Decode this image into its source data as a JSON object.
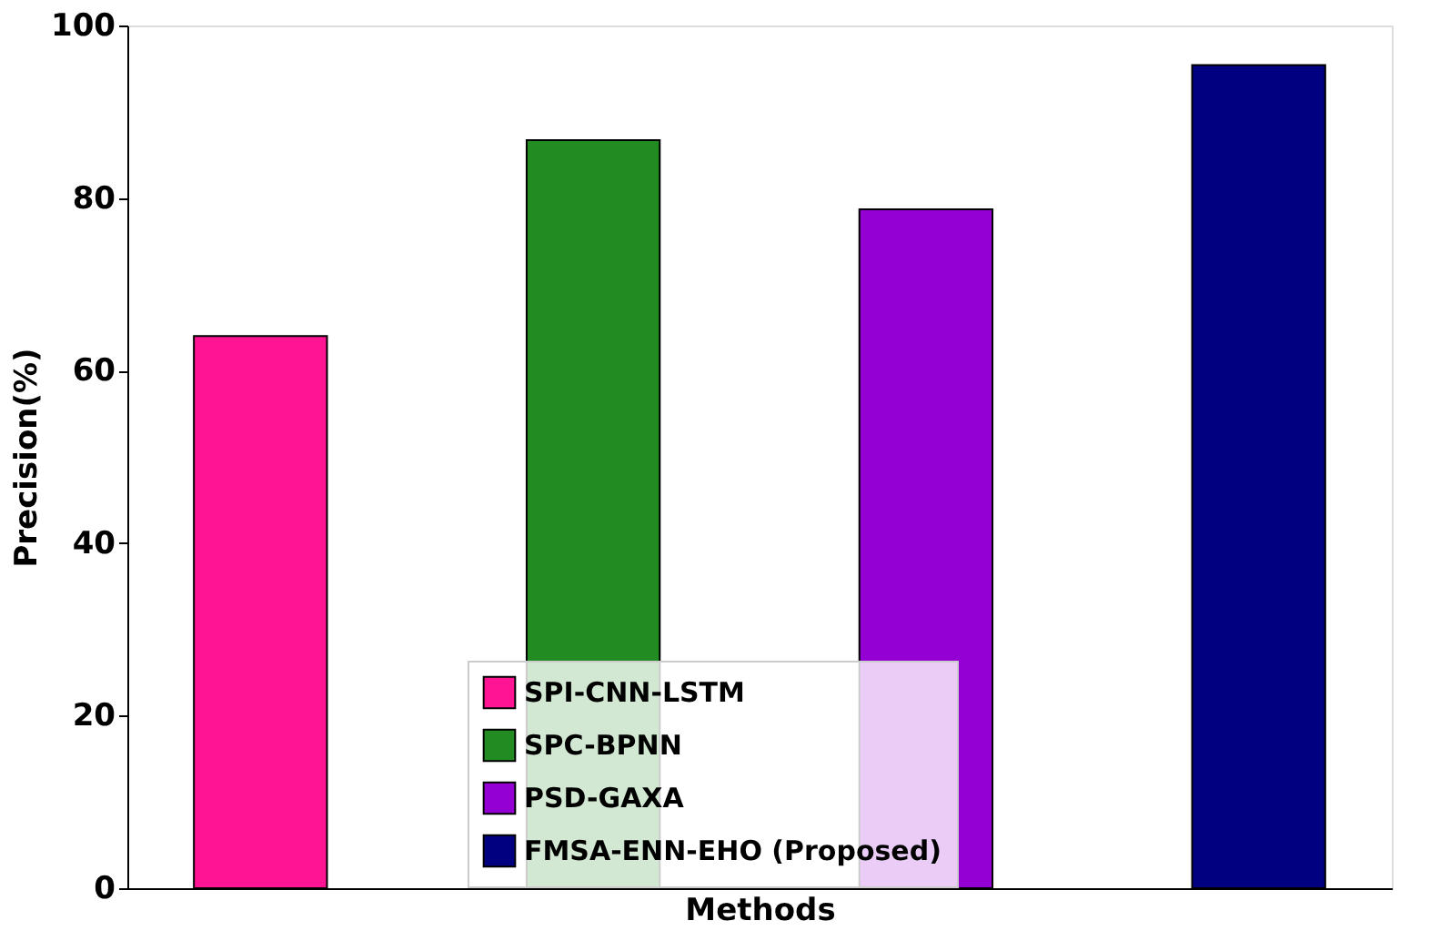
{
  "chart_data": {
    "type": "bar",
    "xlabel": "Methods",
    "ylabel": "Precision(%)",
    "categories": [
      null,
      null,
      null,
      null
    ],
    "series": [
      {
        "name": "SPI-CNN-LSTM",
        "color": "#ff1493",
        "values": [
          64,
          null,
          null,
          null
        ]
      },
      {
        "name": "SPC-BPNN",
        "color": "#228b22",
        "values": [
          null,
          86.7,
          null,
          null
        ]
      },
      {
        "name": "PSD-GAXA",
        "color": "#9400d3",
        "values": [
          null,
          null,
          78.7,
          null
        ]
      },
      {
        "name": "FMSA-ENN-EHO (Proposed)",
        "color": "#000080",
        "values": [
          null,
          null,
          null,
          95.4
        ]
      }
    ],
    "ylim": [
      0,
      100
    ],
    "yticks": [
      0,
      20,
      40,
      60,
      80,
      100
    ],
    "grid": false,
    "legend": "bottom",
    "tick_labels": "y"
  }
}
